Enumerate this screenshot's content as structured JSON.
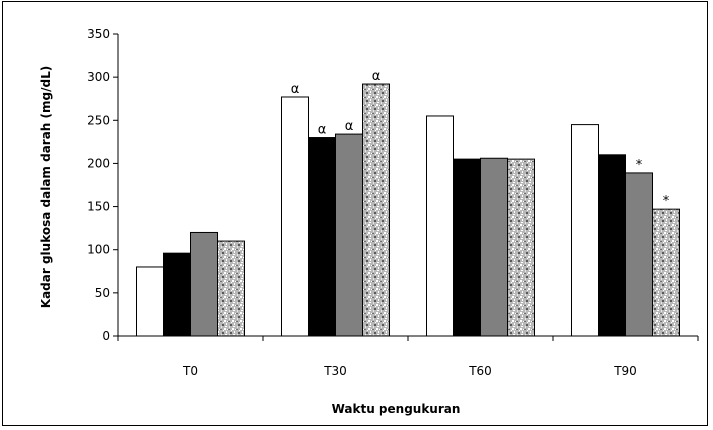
{
  "chart_data": {
    "type": "bar",
    "categories": [
      "T0",
      "T30",
      "T60",
      "T90"
    ],
    "series": [
      {
        "values": [
          80,
          277,
          255,
          245
        ],
        "color": "#ffffff",
        "pattern": "none"
      },
      {
        "values": [
          96,
          230,
          205,
          210
        ],
        "color": "#000000",
        "pattern": "none"
      },
      {
        "values": [
          120,
          234,
          206,
          189
        ],
        "color": "#808080",
        "pattern": "none"
      },
      {
        "values": [
          110,
          292,
          205,
          147
        ],
        "color": "#b4b4b4",
        "pattern": "speckle"
      }
    ],
    "annotations": [
      {
        "category": "T30",
        "series": 0,
        "text": "α"
      },
      {
        "category": "T30",
        "series": 1,
        "text": "α"
      },
      {
        "category": "T30",
        "series": 2,
        "text": "α"
      },
      {
        "category": "T30",
        "series": 3,
        "text": "α"
      },
      {
        "category": "T90",
        "series": 2,
        "text": "*"
      },
      {
        "category": "T90",
        "series": 3,
        "text": "*"
      }
    ],
    "title": "",
    "xlabel": "Waktu pengukuran",
    "ylabel": "Kadar glukosa dalam darah (mg/dL)",
    "ylim": [
      0,
      350
    ],
    "yticks": [
      0,
      50,
      100,
      150,
      200,
      250,
      300,
      350
    ],
    "grid": false,
    "legend": "none"
  }
}
